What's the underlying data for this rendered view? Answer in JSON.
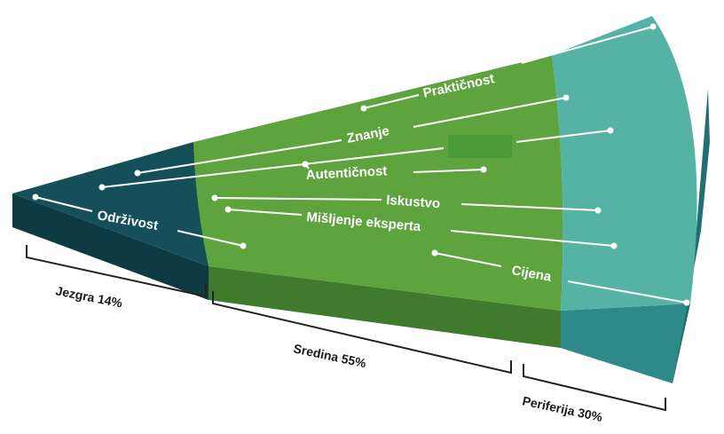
{
  "diagram": {
    "colors": {
      "core_top": "#15505a",
      "core_side": "#0d3a43",
      "middle_top": "#5fa33e",
      "middle_side": "#3f7a2d",
      "periphery_top": "#55b3a6",
      "periphery_side": "#2d8a88",
      "periphery_edge": "#226f72",
      "label": "#ffffff",
      "hidden_box": "#4a9a3a"
    },
    "labels": {
      "prakticnost": "Praktičnost",
      "znanje": "Znanje",
      "autenticnost": "Autentičnost",
      "iskustvo": "Iskustvo",
      "odrzivost": "Održivost",
      "misljenje": "Mišljenje eksperta",
      "cijena": "Cijena"
    },
    "segments": [
      {
        "name": "Jezgra",
        "percent": "14%",
        "label": "Jezgra 14%"
      },
      {
        "name": "Sredina",
        "percent": "55%",
        "label": "Sredina 55%"
      },
      {
        "name": "Periferija",
        "percent": "30%",
        "label": "Periferija 30%"
      }
    ]
  }
}
